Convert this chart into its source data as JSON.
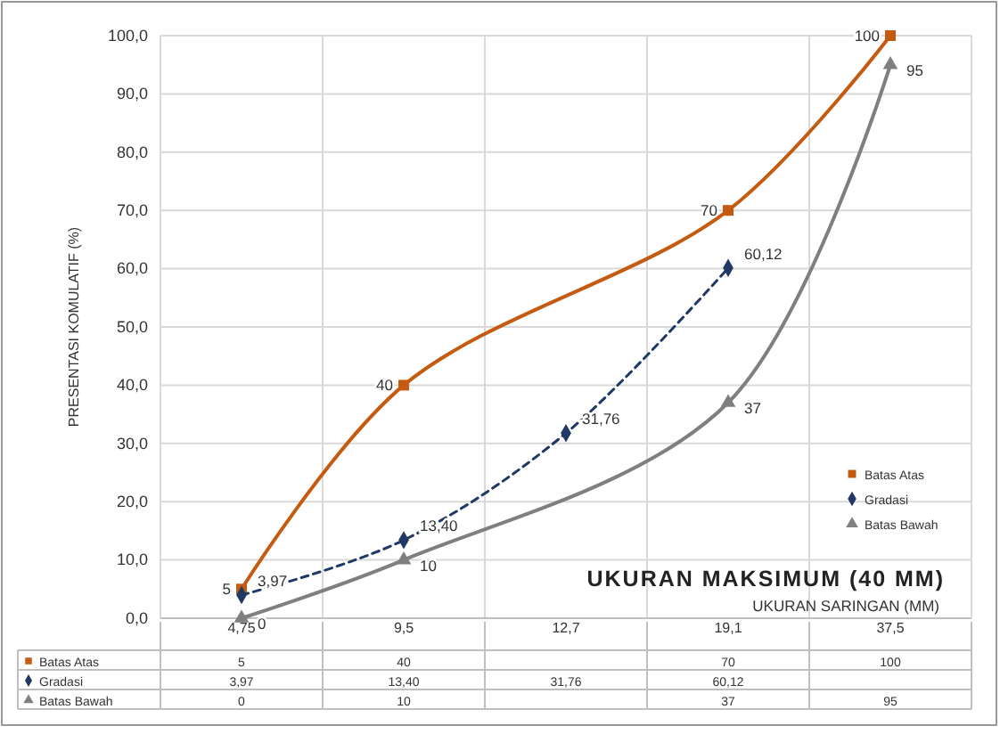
{
  "chart_data": {
    "type": "line",
    "xlabel": "UKURAN SARINGAN (MM)",
    "ylabel": "PRESENTASI KOMULATIF (%)",
    "categories": [
      "4,75",
      "9,5",
      "12,7",
      "19,1",
      "37,5"
    ],
    "ylim": [
      0,
      100
    ],
    "yticks": [
      {
        "value": 0,
        "label": "0,0"
      },
      {
        "value": 10,
        "label": "10,0"
      },
      {
        "value": 20,
        "label": "20,0"
      },
      {
        "value": 30,
        "label": "30,0"
      },
      {
        "value": 40,
        "label": "40,0"
      },
      {
        "value": 50,
        "label": "50,0"
      },
      {
        "value": 60,
        "label": "60,0"
      },
      {
        "value": 70,
        "label": "70,0"
      },
      {
        "value": 80,
        "label": "80,0"
      },
      {
        "value": 90,
        "label": "90,0"
      },
      {
        "value": 100,
        "label": "100,0"
      }
    ],
    "grid": true,
    "legend": "bottom right",
    "annotations": [
      "UKURAN MAKSIMUM (40 MM)"
    ],
    "series": [
      {
        "name": "Batas Atas",
        "color": "#c55a11",
        "marker": "square",
        "line_style": "solid",
        "values": [
          5,
          40,
          null,
          70,
          100
        ],
        "value_labels": [
          "5",
          "40",
          null,
          "70",
          "100"
        ]
      },
      {
        "name": "Gradasi",
        "color": "#1f3864",
        "marker": "diamond",
        "line_style": "dashed",
        "values": [
          3.97,
          13.4,
          31.76,
          60.12,
          null
        ],
        "value_labels": [
          "3,97",
          "13,40",
          "31,76",
          "60,12",
          null
        ]
      },
      {
        "name": "Batas Bawah",
        "color": "#7f7f7f",
        "marker": "triangle",
        "line_style": "solid",
        "values": [
          0,
          10,
          null,
          37,
          95
        ],
        "value_labels": [
          "0",
          "10",
          null,
          "37",
          "95"
        ]
      }
    ]
  }
}
